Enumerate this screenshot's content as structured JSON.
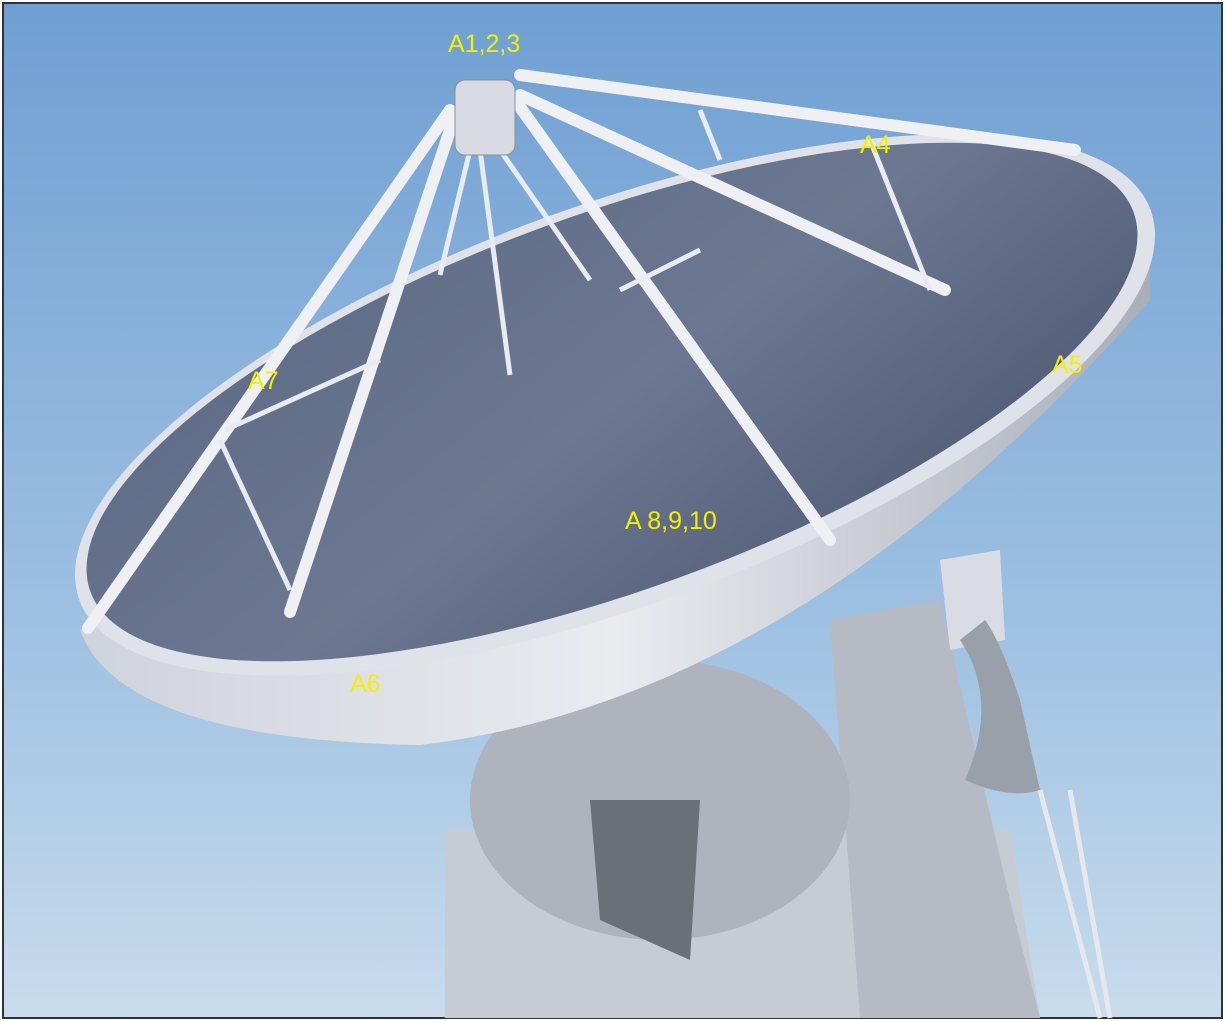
{
  "labels": [
    "A1,2,3",
    "A4",
    "A5",
    "A7",
    "A 8,9,10",
    "A6"
  ]
}
